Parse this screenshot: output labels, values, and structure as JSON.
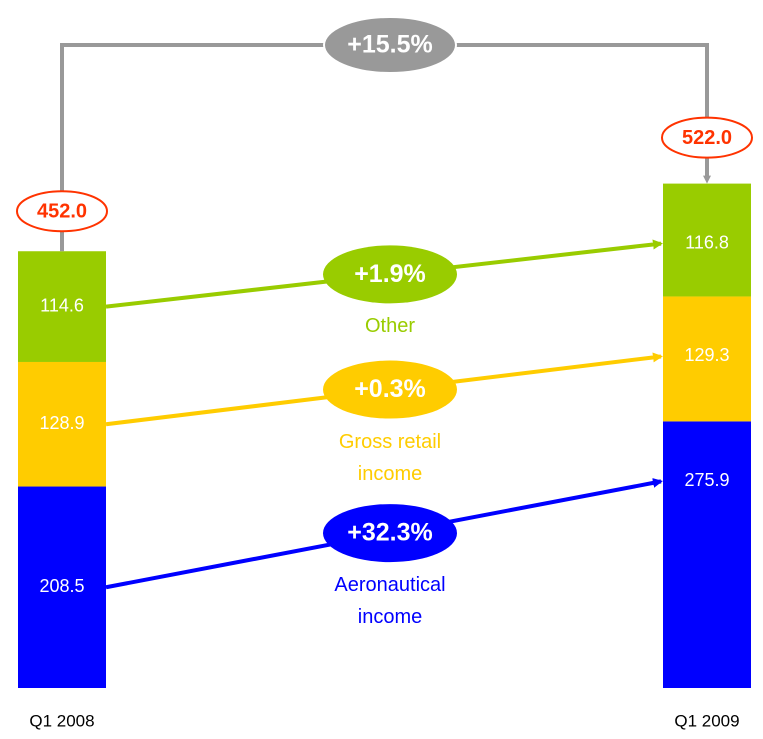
{
  "chart_data": {
    "type": "bar",
    "stacked": true,
    "categories": [
      "Q1 2008",
      "Q1 2009"
    ],
    "series": [
      {
        "name": "Aeronautical income",
        "color": "#0000ff",
        "values": [
          208.5,
          275.9
        ],
        "change": 32.3,
        "change_label": "+32.3%"
      },
      {
        "name": "Gross retail income",
        "color": "#ffcc00",
        "values": [
          128.9,
          129.3
        ],
        "change": 0.3,
        "change_label": "+0.3%"
      },
      {
        "name": "Other",
        "color": "#99cc00",
        "values": [
          114.6,
          116.8
        ],
        "change": 1.9,
        "change_label": "+1.9%"
      }
    ],
    "totals": [
      452.0,
      522.0
    ],
    "total_labels": [
      "452.0",
      "522.0"
    ],
    "total_change": 15.5,
    "total_change_label": "+15.5%",
    "ylim": [
      0,
      712
    ]
  }
}
